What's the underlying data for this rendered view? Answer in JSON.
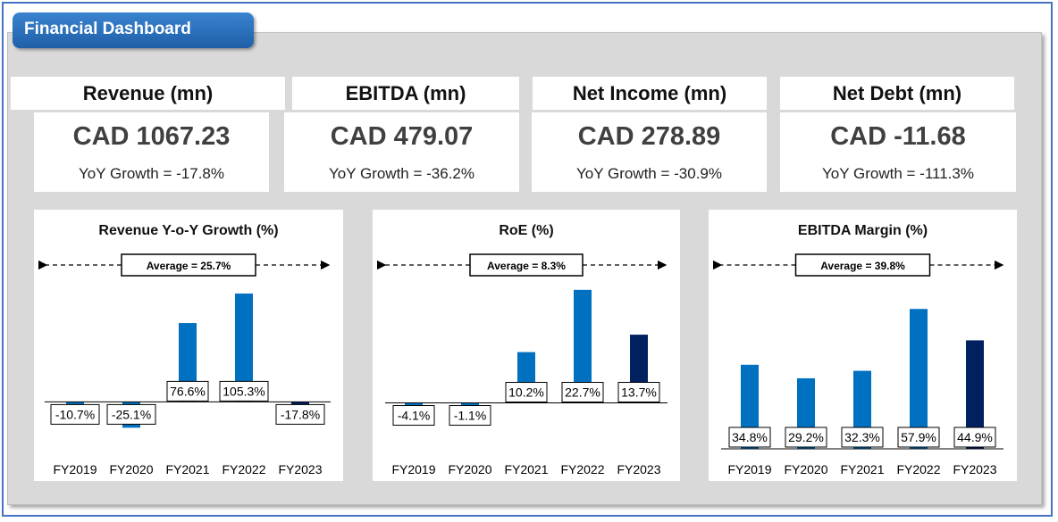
{
  "header": {
    "title": "Financial Dashboard"
  },
  "kpis": [
    {
      "label": "Revenue (mn)",
      "value": "CAD 1067.23",
      "growth": "YoY Growth = -17.8%"
    },
    {
      "label": "EBITDA (mn)",
      "value": "CAD 479.07",
      "growth": "YoY Growth = -36.2%"
    },
    {
      "label": "Net Income (mn)",
      "value": "CAD 278.89",
      "growth": "YoY Growth = -30.9%"
    },
    {
      "label": "Net Debt (mn)",
      "value": "CAD -11.68",
      "growth": "YoY Growth = -111.3%"
    }
  ],
  "colors": {
    "bar": "#0070c0",
    "last_bar": "#002060",
    "title_bg": "#2e75c6"
  },
  "chart_data": [
    {
      "type": "bar",
      "title": "Revenue Y-o-Y Growth (%)",
      "categories": [
        "FY2019",
        "FY2020",
        "FY2021",
        "FY2022",
        "FY2023"
      ],
      "values": [
        -10.7,
        -25.1,
        76.6,
        105.3,
        -17.8
      ],
      "labels": [
        "-10.7%",
        "-25.1%",
        "76.6%",
        "105.3%",
        "-17.8%"
      ],
      "average_label": "Average = 25.7%",
      "ylim": [
        -30,
        120
      ]
    },
    {
      "type": "bar",
      "title": "RoE (%)",
      "categories": [
        "FY2019",
        "FY2020",
        "FY2021",
        "FY2022",
        "FY2023"
      ],
      "values": [
        -4.1,
        -1.1,
        10.2,
        22.7,
        13.7
      ],
      "labels": [
        "-4.1%",
        "-1.1%",
        "10.2%",
        "22.7%",
        "13.7%"
      ],
      "average_label": "Average = 8.3%",
      "ylim": [
        -6,
        25
      ]
    },
    {
      "type": "bar",
      "title": "EBITDA Margin (%)",
      "categories": [
        "FY2019",
        "FY2020",
        "FY2021",
        "FY2022",
        "FY2023"
      ],
      "values": [
        34.8,
        29.2,
        32.3,
        57.9,
        44.9
      ],
      "labels": [
        "34.8%",
        "29.2%",
        "32.3%",
        "57.9%",
        "44.9%"
      ],
      "average_label": "Average = 39.8%",
      "ylim": [
        0,
        65
      ]
    }
  ]
}
